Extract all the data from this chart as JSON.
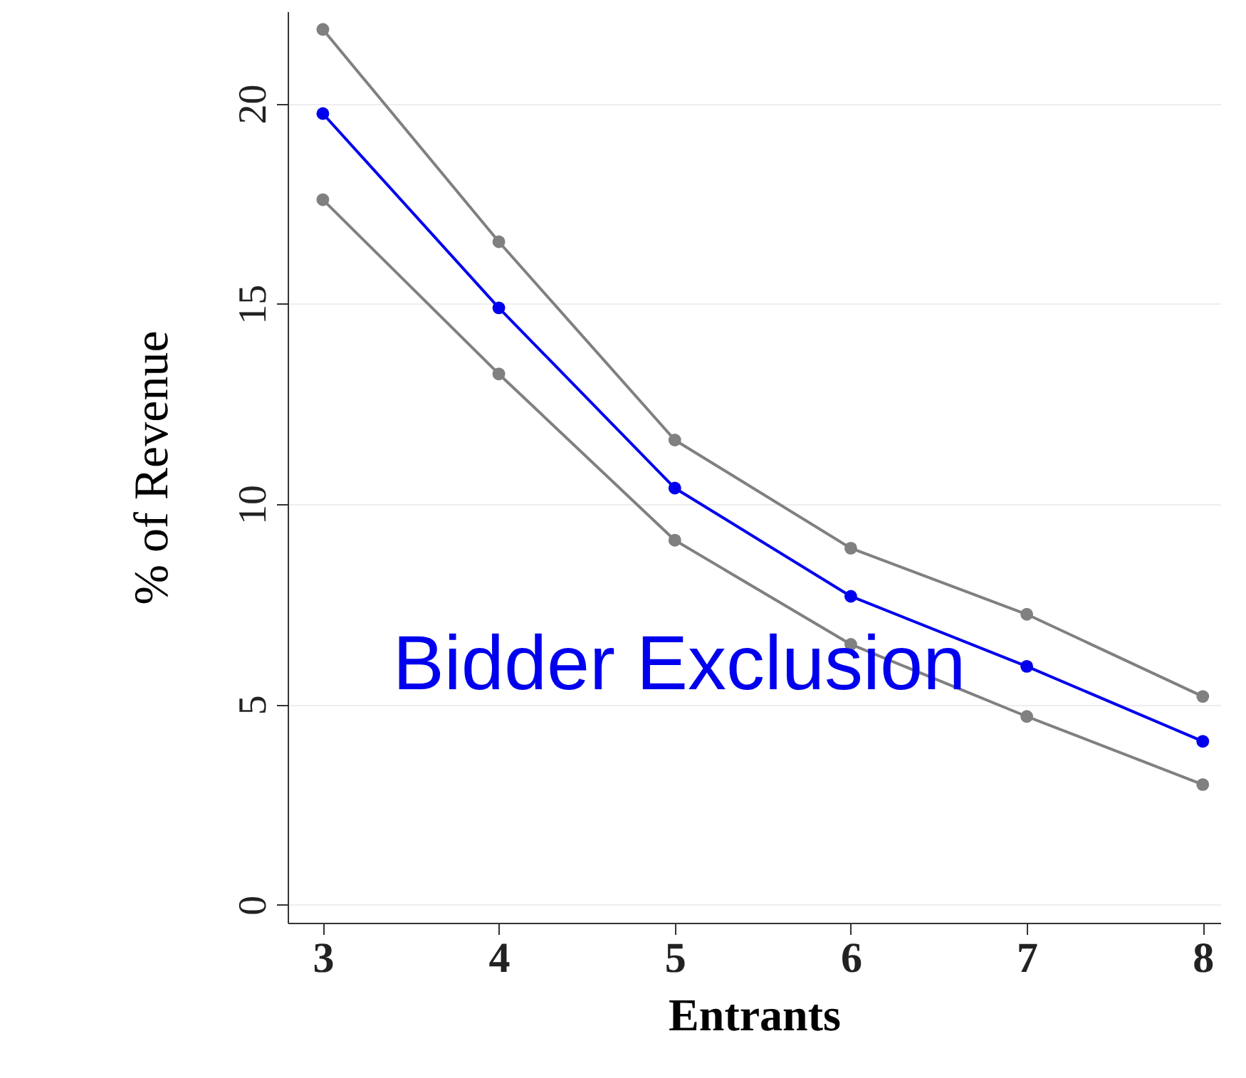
{
  "chart_data": {
    "type": "line",
    "xlabel": "Entrants",
    "ylabel": "% of Revenue",
    "x": [
      3,
      4,
      5,
      6,
      7,
      8
    ],
    "series": [
      {
        "color": "#808080",
        "values": [
          21.85,
          16.55,
          11.6,
          8.9,
          7.25,
          5.2
        ]
      },
      {
        "color": "#808080",
        "values": [
          17.6,
          13.25,
          9.1,
          6.5,
          4.7,
          3.0
        ]
      },
      {
        "color": "#0000ee",
        "values": [
          19.75,
          14.9,
          10.4,
          7.7,
          5.95,
          4.08
        ]
      }
    ],
    "xlim": [
      2.8,
      8.1
    ],
    "ylim": [
      -0.45,
      22.3
    ],
    "xticks": [
      3,
      4,
      5,
      6,
      7,
      8
    ],
    "yticks": [
      0,
      5,
      10,
      15,
      20
    ],
    "grid": "y",
    "marker": "circle",
    "line_style": "solid",
    "annotations": [
      "Bidder Exclusion"
    ]
  }
}
